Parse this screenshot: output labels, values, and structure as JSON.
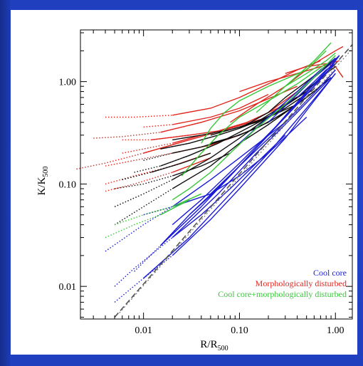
{
  "chart_data": {
    "type": "line",
    "xlabel": "R/R500",
    "ylabel": "K/K500",
    "x_scale": "log",
    "y_scale": "log",
    "xlim": [
      0.0022,
      1.5
    ],
    "ylim": [
      0.0048,
      3.2
    ],
    "x_ticks": [
      {
        "value": 0.01,
        "label": "0.01"
      },
      {
        "value": 0.1,
        "label": "0.10"
      },
      {
        "value": 1.0,
        "label": "1.00"
      }
    ],
    "y_ticks": [
      {
        "value": 0.01,
        "label": "0.01"
      },
      {
        "value": 0.1,
        "label": "0.10"
      },
      {
        "value": 1.0,
        "label": "1.00"
      }
    ],
    "grid": false,
    "legend_position": "bottom-right",
    "legend": [
      {
        "label": "Cool core",
        "color": "#1c1cd6"
      },
      {
        "label": "Morphologically disturbed",
        "color": "#e0261f"
      },
      {
        "label": "Cool core+morphologically disturbed",
        "color": "#38c838"
      }
    ],
    "reference_lines": [
      {
        "style": "dashed",
        "x": [
          0.005,
          1.5
        ],
        "y": [
          0.005,
          2.3
        ]
      },
      {
        "style": "dotted",
        "x": [
          0.0056,
          1.5
        ],
        "y": [
          0.0055,
          2.1
        ]
      }
    ],
    "series": [
      {
        "group": "red",
        "x": [
          0.004,
          0.008,
          0.02,
          0.05,
          0.1,
          0.2,
          0.4,
          0.7
        ],
        "y": [
          0.45,
          0.45,
          0.47,
          0.55,
          0.7,
          0.95,
          1.3,
          1.6
        ]
      },
      {
        "group": "red",
        "x": [
          0.003,
          0.006,
          0.015,
          0.04,
          0.1,
          0.2,
          0.4
        ],
        "y": [
          0.28,
          0.29,
          0.32,
          0.4,
          0.52,
          0.68,
          0.9
        ]
      },
      {
        "group": "red",
        "x": [
          0.006,
          0.012,
          0.03,
          0.06,
          0.12,
          0.25,
          0.5
        ],
        "y": [
          0.27,
          0.27,
          0.3,
          0.33,
          0.4,
          0.55,
          0.8
        ]
      },
      {
        "group": "red",
        "x": [
          0.002,
          0.004,
          0.01,
          0.03,
          0.08,
          0.2
        ],
        "y": [
          0.14,
          0.16,
          0.2,
          0.27,
          0.35,
          0.45
        ]
      },
      {
        "group": "red",
        "x": [
          0.004,
          0.008,
          0.02,
          0.05,
          0.1
        ],
        "y": [
          0.15,
          0.17,
          0.2,
          0.24,
          0.3
        ]
      },
      {
        "group": "red",
        "x": [
          0.004,
          0.008,
          0.02,
          0.05
        ],
        "y": [
          0.085,
          0.1,
          0.13,
          0.18
        ]
      },
      {
        "group": "red",
        "x": [
          0.004,
          0.008,
          0.02,
          0.05
        ],
        "y": [
          0.1,
          0.12,
          0.15,
          0.2
        ]
      },
      {
        "group": "red",
        "x": [
          0.006,
          0.01,
          0.02,
          0.04
        ],
        "y": [
          0.2,
          0.22,
          0.25,
          0.3
        ]
      },
      {
        "group": "red",
        "x": [
          0.01,
          0.02,
          0.05,
          0.1,
          0.2
        ],
        "y": [
          0.36,
          0.38,
          0.45,
          0.55,
          0.75
        ]
      },
      {
        "group": "red",
        "x": [
          0.08,
          0.15,
          0.3,
          0.6,
          1.0,
          1.2
        ],
        "y": [
          0.4,
          0.6,
          0.9,
          1.5,
          2.0,
          2.2
        ]
      },
      {
        "group": "red",
        "x": [
          0.1,
          0.2,
          0.4,
          0.7,
          1.1
        ],
        "y": [
          0.8,
          1.0,
          1.2,
          1.4,
          1.6
        ]
      },
      {
        "group": "red",
        "x": [
          0.2,
          0.4,
          0.7,
          1.0
        ],
        "y": [
          0.5,
          0.8,
          1.3,
          1.6
        ]
      },
      {
        "group": "red",
        "x": [
          0.3,
          0.5,
          0.8,
          1.0,
          1.2
        ],
        "y": [
          1.2,
          1.4,
          1.5,
          1.4,
          1.1
        ]
      },
      {
        "group": "black",
        "x": [
          0.005,
          0.01,
          0.02,
          0.05,
          0.1,
          0.2,
          0.5,
          0.9
        ],
        "y": [
          0.04,
          0.06,
          0.09,
          0.15,
          0.25,
          0.38,
          0.7,
          1.1
        ]
      },
      {
        "group": "black",
        "x": [
          0.005,
          0.01,
          0.02,
          0.05,
          0.1,
          0.2,
          0.5
        ],
        "y": [
          0.06,
          0.08,
          0.11,
          0.18,
          0.28,
          0.45,
          0.8
        ]
      },
      {
        "group": "black",
        "x": [
          0.008,
          0.015,
          0.03,
          0.06,
          0.1,
          0.3
        ],
        "y": [
          0.13,
          0.15,
          0.19,
          0.25,
          0.32,
          0.55
        ]
      },
      {
        "group": "black",
        "x": [
          0.01,
          0.02,
          0.04,
          0.08,
          0.15,
          0.3
        ],
        "y": [
          0.17,
          0.2,
          0.23,
          0.28,
          0.35,
          0.5
        ]
      },
      {
        "group": "black",
        "x": [
          0.015,
          0.03,
          0.06,
          0.1,
          0.2,
          0.4
        ],
        "y": [
          0.22,
          0.25,
          0.3,
          0.35,
          0.45,
          0.6
        ]
      },
      {
        "group": "black",
        "x": [
          0.02,
          0.04,
          0.08,
          0.15,
          0.3,
          0.6
        ],
        "y": [
          0.27,
          0.3,
          0.34,
          0.4,
          0.55,
          0.85
        ]
      },
      {
        "group": "black",
        "x": [
          0.005,
          0.01,
          0.02,
          0.04,
          0.08
        ],
        "y": [
          0.09,
          0.1,
          0.12,
          0.15,
          0.2
        ]
      },
      {
        "group": "black",
        "x": [
          0.006,
          0.012,
          0.025,
          0.05
        ],
        "y": [
          0.11,
          0.13,
          0.16,
          0.2
        ]
      },
      {
        "group": "black",
        "x": [
          0.05,
          0.1,
          0.2,
          0.4,
          0.8,
          1.0
        ],
        "y": [
          0.3,
          0.36,
          0.45,
          0.7,
          1.2,
          1.4
        ]
      },
      {
        "group": "black",
        "x": [
          0.05,
          0.1,
          0.2,
          0.4,
          0.7,
          1.0
        ],
        "y": [
          0.25,
          0.3,
          0.4,
          0.6,
          0.9,
          1.3
        ]
      },
      {
        "group": "black",
        "x": [
          0.1,
          0.2,
          0.3,
          0.5,
          0.8,
          1.0
        ],
        "y": [
          0.35,
          0.5,
          0.7,
          1.0,
          1.4,
          1.7
        ]
      },
      {
        "group": "black",
        "x": [
          0.15,
          0.3,
          0.5,
          0.8,
          1.0
        ],
        "y": [
          0.4,
          0.6,
          0.8,
          1.2,
          1.5
        ]
      },
      {
        "group": "blue",
        "x": [
          0.004,
          0.01,
          0.02,
          0.05,
          0.1,
          0.3
        ],
        "y": [
          0.022,
          0.04,
          0.06,
          0.11,
          0.18,
          0.4
        ]
      },
      {
        "group": "blue",
        "x": [
          0.005,
          0.01,
          0.03,
          0.08,
          0.2,
          0.5,
          1.0
        ],
        "y": [
          0.007,
          0.012,
          0.03,
          0.08,
          0.2,
          0.55,
          1.2
        ]
      },
      {
        "group": "blue",
        "x": [
          0.005,
          0.008,
          0.02,
          0.06,
          0.15,
          0.4,
          0.9
        ],
        "y": [
          0.01,
          0.015,
          0.03,
          0.08,
          0.2,
          0.5,
          1.1
        ]
      },
      {
        "group": "blue",
        "x": [
          0.008,
          0.015,
          0.04,
          0.1,
          0.3,
          0.7,
          1.0
        ],
        "y": [
          0.014,
          0.025,
          0.06,
          0.15,
          0.4,
          0.9,
          1.3
        ]
      },
      {
        "group": "blue",
        "x": [
          0.01,
          0.02,
          0.05,
          0.1,
          0.3,
          0.6,
          1.0
        ],
        "y": [
          0.012,
          0.02,
          0.045,
          0.09,
          0.28,
          0.65,
          1.2
        ]
      },
      {
        "group": "blue",
        "x": [
          0.015,
          0.03,
          0.08,
          0.2,
          0.5,
          1.0
        ],
        "y": [
          0.025,
          0.05,
          0.12,
          0.3,
          0.8,
          1.5
        ]
      },
      {
        "group": "blue",
        "x": [
          0.02,
          0.04,
          0.1,
          0.3,
          0.6,
          1.0
        ],
        "y": [
          0.04,
          0.07,
          0.16,
          0.45,
          0.95,
          1.6
        ]
      },
      {
        "group": "blue",
        "x": [
          0.01,
          0.02,
          0.05,
          0.1,
          0.2,
          0.5
        ],
        "y": [
          0.05,
          0.06,
          0.08,
          0.12,
          0.2,
          0.45
        ]
      },
      {
        "group": "blue",
        "x": [
          0.03,
          0.06,
          0.1,
          0.2,
          0.5,
          1.0
        ],
        "y": [
          0.05,
          0.09,
          0.15,
          0.3,
          0.75,
          1.5
        ]
      },
      {
        "group": "blue",
        "x": [
          0.05,
          0.1,
          0.2,
          0.4,
          0.8,
          1.1
        ],
        "y": [
          0.08,
          0.15,
          0.3,
          0.6,
          1.2,
          1.8
        ]
      },
      {
        "group": "blue",
        "x": [
          0.1,
          0.2,
          0.4,
          0.7,
          1.0
        ],
        "y": [
          0.25,
          0.45,
          0.8,
          1.3,
          1.7
        ]
      },
      {
        "group": "blue",
        "x": [
          0.2,
          0.4,
          0.6,
          0.9,
          1.1
        ],
        "y": [
          0.4,
          0.75,
          1.1,
          1.5,
          1.8
        ]
      },
      {
        "group": "blue",
        "x": [
          0.02,
          0.04,
          0.08,
          0.15,
          0.3
        ],
        "y": [
          0.03,
          0.05,
          0.09,
          0.16,
          0.3
        ]
      },
      {
        "group": "blue",
        "x": [
          0.4,
          0.6,
          0.8,
          1.0
        ],
        "y": [
          0.7,
          1.0,
          1.3,
          1.5
        ]
      },
      {
        "group": "green",
        "x": [
          0.004,
          0.008,
          0.015,
          0.03
        ],
        "y": [
          0.03,
          0.04,
          0.05,
          0.07
        ]
      },
      {
        "group": "green",
        "x": [
          0.005,
          0.01,
          0.02,
          0.04
        ],
        "y": [
          0.04,
          0.05,
          0.06,
          0.08
        ]
      },
      {
        "group": "green",
        "x": [
          0.02,
          0.03,
          0.05,
          0.08,
          0.15,
          0.3,
          0.6,
          1.0
        ],
        "y": [
          0.07,
          0.09,
          0.13,
          0.2,
          0.35,
          0.6,
          1.1,
          1.8
        ]
      },
      {
        "group": "green",
        "x": [
          0.025,
          0.04,
          0.06,
          0.1,
          0.2,
          0.4,
          0.8
        ],
        "y": [
          0.12,
          0.2,
          0.3,
          0.45,
          0.65,
          0.95,
          1.5
        ]
      },
      {
        "group": "green",
        "x": [
          0.04,
          0.05,
          0.07,
          0.1,
          0.2,
          0.5,
          0.8
        ],
        "y": [
          0.25,
          0.35,
          0.5,
          0.65,
          0.9,
          1.3,
          2.0
        ]
      },
      {
        "group": "green",
        "x": [
          0.15,
          0.3,
          0.6,
          0.9
        ],
        "y": [
          0.5,
          0.9,
          1.6,
          2.4
        ]
      },
      {
        "group": "green",
        "x": [
          0.3,
          0.5,
          0.8,
          1.0
        ],
        "y": [
          0.9,
          1.2,
          1.6,
          1.9
        ]
      }
    ],
    "group_styles": {
      "red": {
        "color": "#e0261f"
      },
      "black": {
        "color": "#111111"
      },
      "blue": {
        "color": "#1c1cd6"
      },
      "green": {
        "color": "#38c838"
      }
    }
  }
}
